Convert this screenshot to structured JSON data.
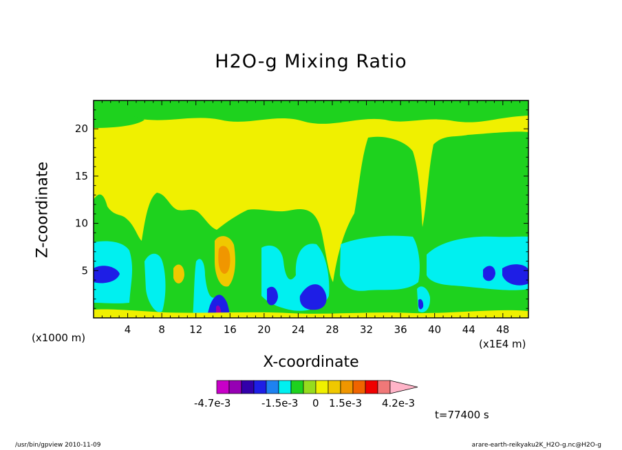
{
  "chart_data": {
    "type": "heatmap",
    "title": "H2O-g Mixing Ratio",
    "xlabel": "X-coordinate",
    "ylabel": "Z-coordinate",
    "x_unit_label": "(x1000 m)",
    "x_scale_label": "(x1E4 m)",
    "xlim": [
      0,
      51
    ],
    "ylim": [
      0,
      23
    ],
    "x_ticks": [
      4,
      8,
      12,
      16,
      20,
      24,
      28,
      32,
      36,
      40,
      44,
      48
    ],
    "y_ticks": [
      5,
      10,
      15,
      20
    ],
    "time_label": "t=77400 s",
    "colorbar": {
      "labels": [
        "-4.7e-3",
        "-1.5e-3",
        "0",
        "1.5e-3",
        "4.2e-3"
      ],
      "colors": [
        "#c800c8",
        "#9600b4",
        "#3200aa",
        "#1e1ee6",
        "#1e82f0",
        "#00f0f0",
        "#1ed21e",
        "#96dc1e",
        "#f0f000",
        "#f0c800",
        "#f09600",
        "#f06400",
        "#f00000",
        "#f07878",
        "#ffb4c8"
      ]
    },
    "regions": [
      {
        "level": "yellow",
        "desc": "background field"
      },
      {
        "level": "green",
        "desc": "upper layer band near z=21-23"
      },
      {
        "level": "green",
        "desc": "lower and right-side plumes"
      },
      {
        "level": "cyan",
        "desc": "low-level moist layers"
      },
      {
        "level": "blue",
        "desc": "strong anomalies near x=1,15,21,26,46,49"
      },
      {
        "level": "orange",
        "desc": "positive anomaly near x=15, z=5-8"
      }
    ]
  },
  "footer": {
    "left": "/usr/bin/gpview   2010-11-09",
    "right": "arare-earth-reikyaku2K_H2O-g.nc@H2O-g"
  }
}
